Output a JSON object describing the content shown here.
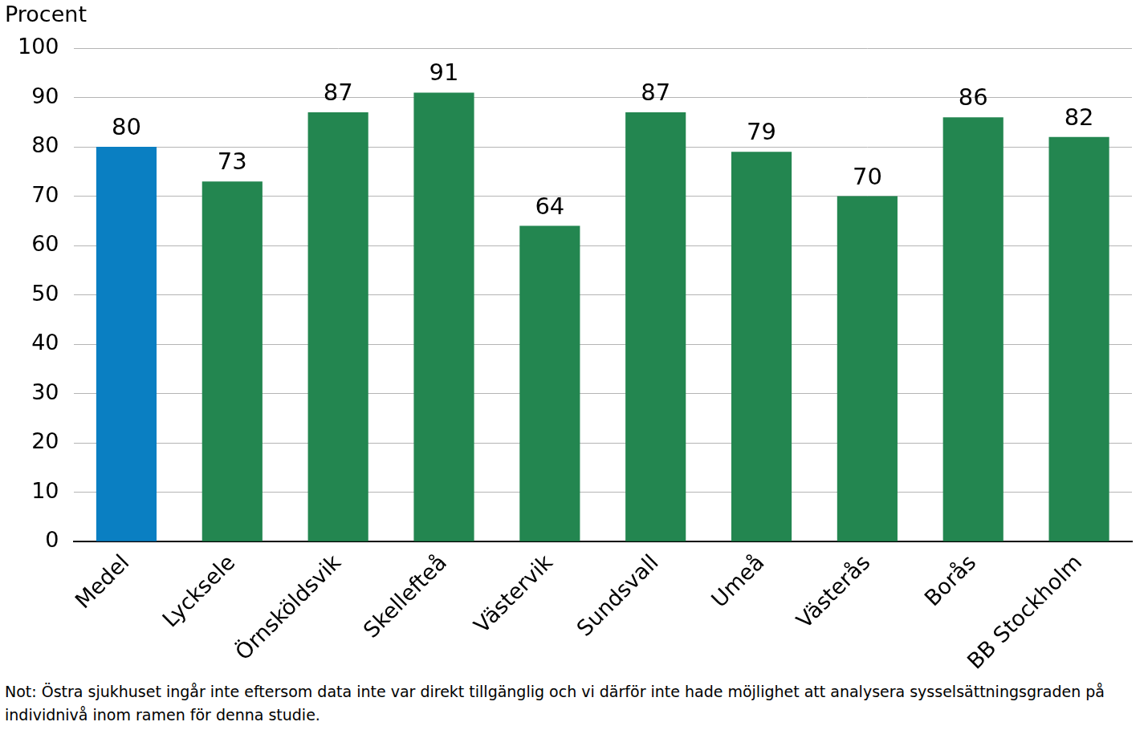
{
  "chart_data": {
    "type": "bar",
    "y_label": "Procent",
    "categories": [
      "Medel",
      "Lycksele",
      "Örnsköldsvik",
      "Skellefteå",
      "Västervik",
      "Sundsvall",
      "Umeå",
      "Västerås",
      "Borås",
      "BB Stockholm"
    ],
    "values": [
      80,
      73,
      87,
      91,
      64,
      87,
      79,
      70,
      86,
      82
    ],
    "colors": [
      "#0a7fc2",
      "#238650",
      "#238650",
      "#238650",
      "#238650",
      "#238650",
      "#238650",
      "#238650",
      "#238650",
      "#238650"
    ],
    "ylim": [
      0,
      100
    ],
    "yticks": [
      0,
      10,
      20,
      30,
      40,
      50,
      60,
      70,
      80,
      90,
      100
    ],
    "grid": true,
    "data_labels": true,
    "note": "Not: Östra sjukhuset ingår inte eftersom data inte var direkt tillgänglig och vi därför inte hade möjlighet att analysera sysselsättningsgraden på individnivå inom ramen för denna studie."
  }
}
